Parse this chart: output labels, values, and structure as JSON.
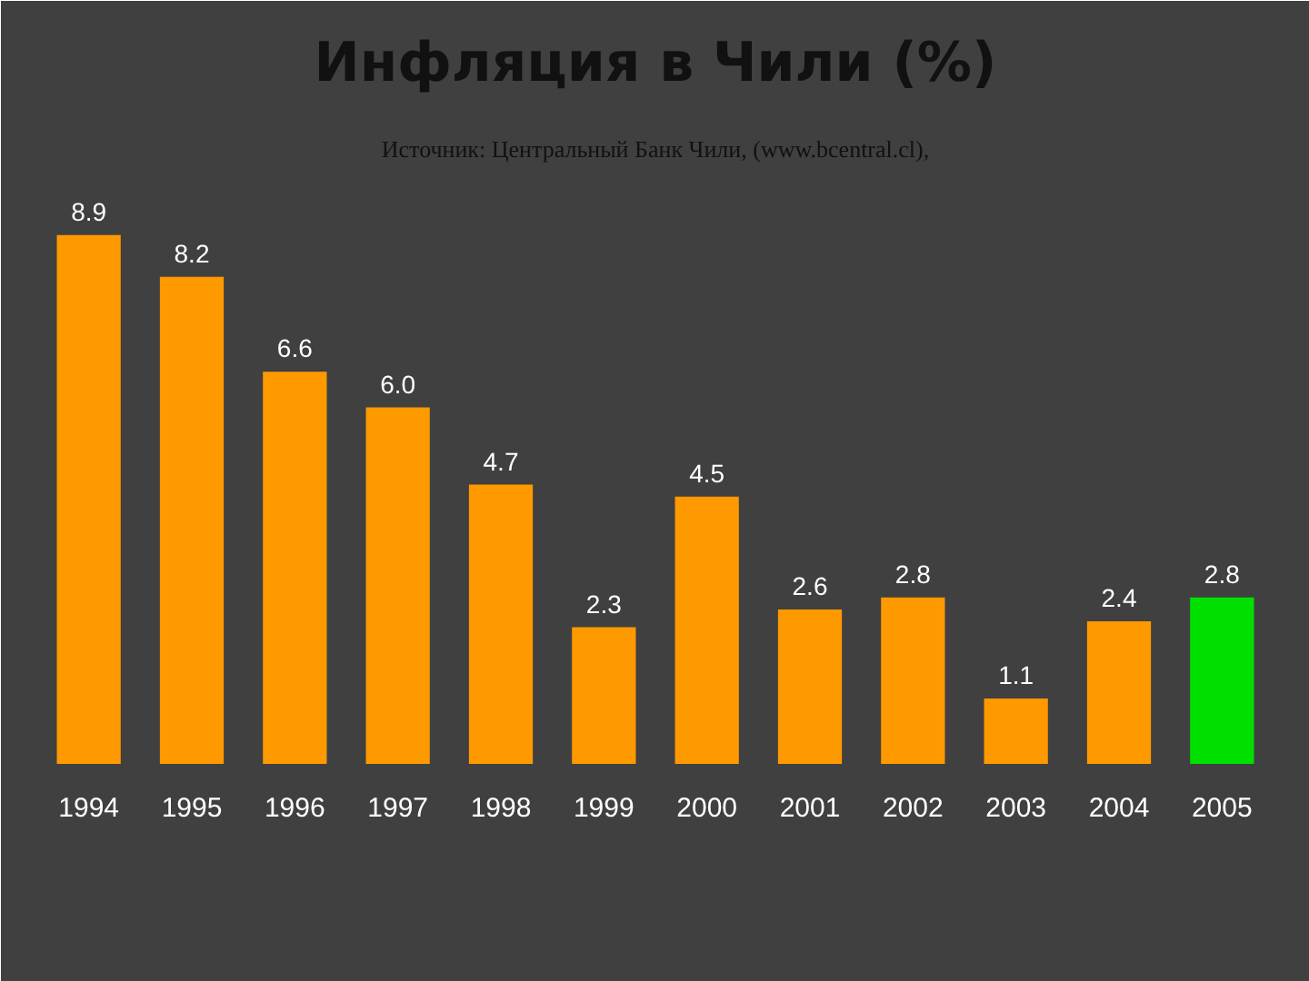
{
  "chart_data": {
    "type": "bar",
    "title": "Инфляция в Чили (%)",
    "annotations": [
      "Источник: Центральный Банк Чили, (www.bcentral.cl),"
    ],
    "categories": [
      "1994",
      "1995",
      "1996",
      "1997",
      "1998",
      "1999",
      "2000",
      "2001",
      "2002",
      "2003",
      "2004",
      "2005"
    ],
    "values": [
      8.9,
      8.2,
      6.6,
      6.0,
      4.7,
      2.3,
      4.5,
      2.6,
      2.8,
      1.1,
      2.4,
      2.8
    ],
    "colors": [
      "#ff9900",
      "#ff9900",
      "#ff9900",
      "#ff9900",
      "#ff9900",
      "#ff9900",
      "#ff9900",
      "#ff9900",
      "#ff9900",
      "#ff9900",
      "#ff9900",
      "#00e000"
    ],
    "value_labels": [
      "8.9",
      "8.2",
      "6.6",
      "6.0",
      "4.7",
      "2.3",
      "4.5",
      "2.6",
      "2.8",
      "1.1",
      "2.4",
      "2.8"
    ],
    "grid": false
  }
}
